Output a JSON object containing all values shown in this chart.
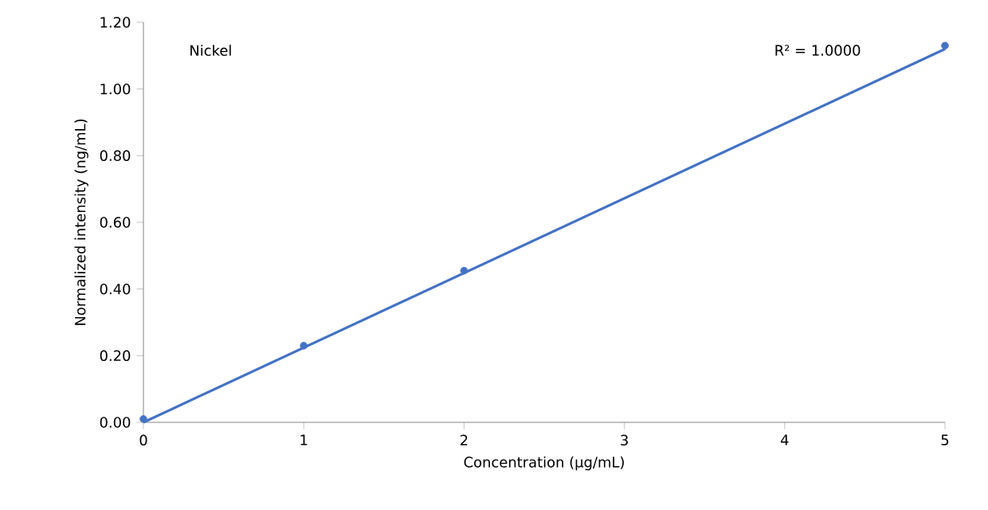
{
  "chart_data": {
    "type": "scatter",
    "xlabel": "Concentration (µg/mL)",
    "ylabel": "Normalized intensity (ng/mL)",
    "annotations": [
      "Nickel",
      "R² = 1.0000"
    ],
    "series": [
      {
        "color": "#4472c4",
        "marker": "circle",
        "x": [
          0,
          1,
          2,
          5
        ],
        "values": [
          0.01,
          0.23,
          0.455,
          1.13
        ]
      },
      {
        "type": "line",
        "color": "#4472c4",
        "marker": "none",
        "line_style": "solid",
        "x": [
          0,
          5
        ],
        "values": [
          0.0,
          1.12
        ]
      }
    ],
    "xlim": [
      0,
      5
    ],
    "xticks": [
      0,
      1,
      2,
      3,
      4,
      5
    ],
    "ylim": [
      0,
      1.2
    ],
    "yticks": [
      {
        "value": 0,
        "label": "0.00"
      },
      {
        "value": 0.2,
        "label": "0.20"
      },
      {
        "value": 0.4,
        "label": "0.40"
      },
      {
        "value": 0.6,
        "label": "0.60"
      },
      {
        "value": 0.8,
        "label": "0.80"
      },
      {
        "value": 1.0,
        "label": "1.00"
      },
      {
        "value": 1.2,
        "label": "1.20"
      }
    ],
    "grid": false
  }
}
